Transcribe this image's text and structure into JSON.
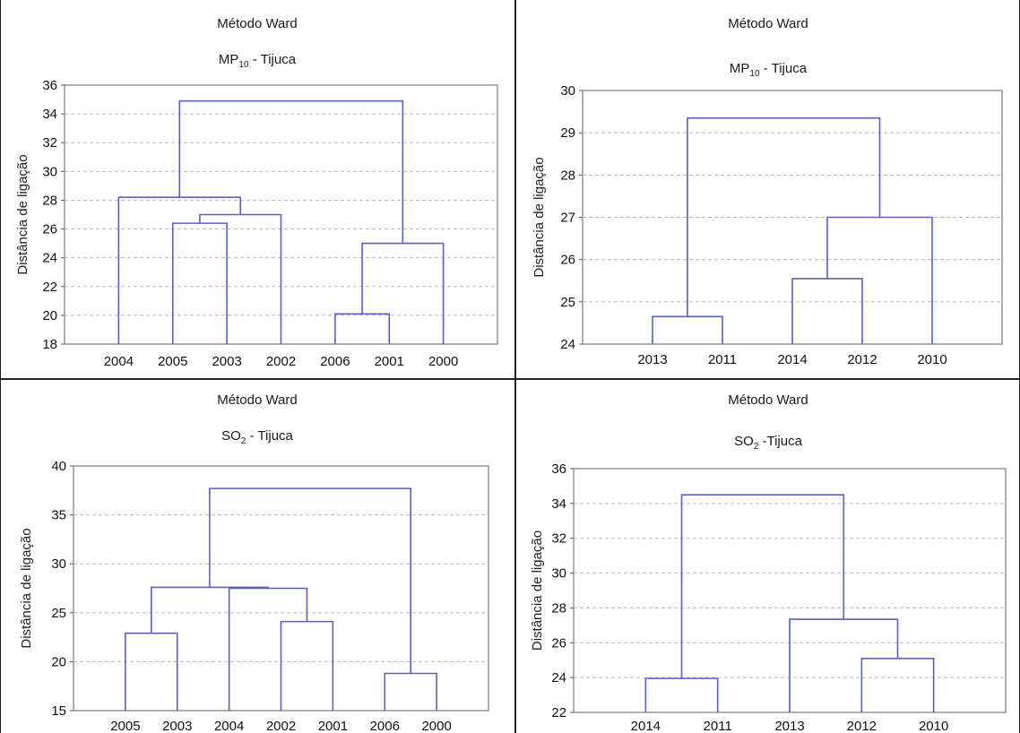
{
  "chart_data": [
    {
      "type": "dendrogram",
      "title": "Método Ward",
      "subtitle_main": "MP",
      "subtitle_sub": "10",
      "subtitle_rest": " - Tijuca",
      "ylabel": "Distância de ligação",
      "ylim": [
        18,
        36
      ],
      "yticks": [
        18,
        20,
        22,
        24,
        26,
        28,
        30,
        32,
        34,
        36
      ],
      "leaves": [
        "2004",
        "2005",
        "2003",
        "2002",
        "2006",
        "2001",
        "2000"
      ],
      "merges": [
        {
          "left": "leaf:2005",
          "right": "leaf:2003",
          "height": 26.4
        },
        {
          "left": "merge:0",
          "right": "leaf:2002",
          "height": 27.0
        },
        {
          "left": "leaf:2004",
          "right": "merge:1",
          "height": 28.2
        },
        {
          "left": "leaf:2006",
          "right": "leaf:2001",
          "height": 20.1
        },
        {
          "left": "merge:3",
          "right": "leaf:2000",
          "height": 25.0
        },
        {
          "left": "merge:2",
          "right": "merge:4",
          "height": 34.9
        }
      ]
    },
    {
      "type": "dendrogram",
      "title": "Método Ward",
      "subtitle_main": "MP",
      "subtitle_sub": "10",
      "subtitle_rest": " - Tijuca",
      "ylabel": "Distância de ligação",
      "ylim": [
        24,
        30
      ],
      "yticks": [
        24,
        25,
        26,
        27,
        28,
        29,
        30
      ],
      "leaves": [
        "2013",
        "2011",
        "2014",
        "2012",
        "2010"
      ],
      "merges": [
        {
          "left": "leaf:2013",
          "right": "leaf:2011",
          "height": 24.65
        },
        {
          "left": "leaf:2014",
          "right": "leaf:2012",
          "height": 25.55
        },
        {
          "left": "merge:1",
          "right": "leaf:2010",
          "height": 27.0
        },
        {
          "left": "merge:0",
          "right": "merge:2",
          "height": 29.35
        }
      ]
    },
    {
      "type": "dendrogram",
      "title": "Método Ward",
      "subtitle_main": "SO",
      "subtitle_sub": "2",
      "subtitle_rest": " - Tijuca",
      "ylabel": "Distância de ligação",
      "ylim": [
        15,
        40
      ],
      "yticks": [
        15,
        20,
        25,
        30,
        35,
        40
      ],
      "leaves": [
        "2005",
        "2003",
        "2004",
        "2002",
        "2001",
        "2006",
        "2000"
      ],
      "merges": [
        {
          "left": "leaf:2005",
          "right": "leaf:2003",
          "height": 22.9
        },
        {
          "left": "leaf:2002",
          "right": "leaf:2001",
          "height": 24.1
        },
        {
          "left": "leaf:2004",
          "right": "merge:1",
          "height": 27.5
        },
        {
          "left": "merge:0",
          "right": "merge:2",
          "height": 27.6
        },
        {
          "left": "leaf:2006",
          "right": "leaf:2000",
          "height": 18.8
        },
        {
          "left": "merge:3",
          "right": "merge:4",
          "height": 37.7
        }
      ]
    },
    {
      "type": "dendrogram",
      "title": "Método Ward",
      "subtitle_main": "SO",
      "subtitle_sub": "2",
      "subtitle_rest": " -Tijuca",
      "ylabel": "Distância de ligação",
      "ylim": [
        22,
        36
      ],
      "yticks": [
        22,
        24,
        26,
        28,
        30,
        32,
        34,
        36
      ],
      "leaves": [
        "2014",
        "2011",
        "2013",
        "2012",
        "2010"
      ],
      "merges": [
        {
          "left": "leaf:2014",
          "right": "leaf:2011",
          "height": 23.95
        },
        {
          "left": "leaf:2012",
          "right": "leaf:2010",
          "height": 25.1
        },
        {
          "left": "leaf:2013",
          "right": "merge:1",
          "height": 27.35
        },
        {
          "left": "merge:0",
          "right": "merge:2",
          "height": 34.5
        }
      ]
    }
  ]
}
